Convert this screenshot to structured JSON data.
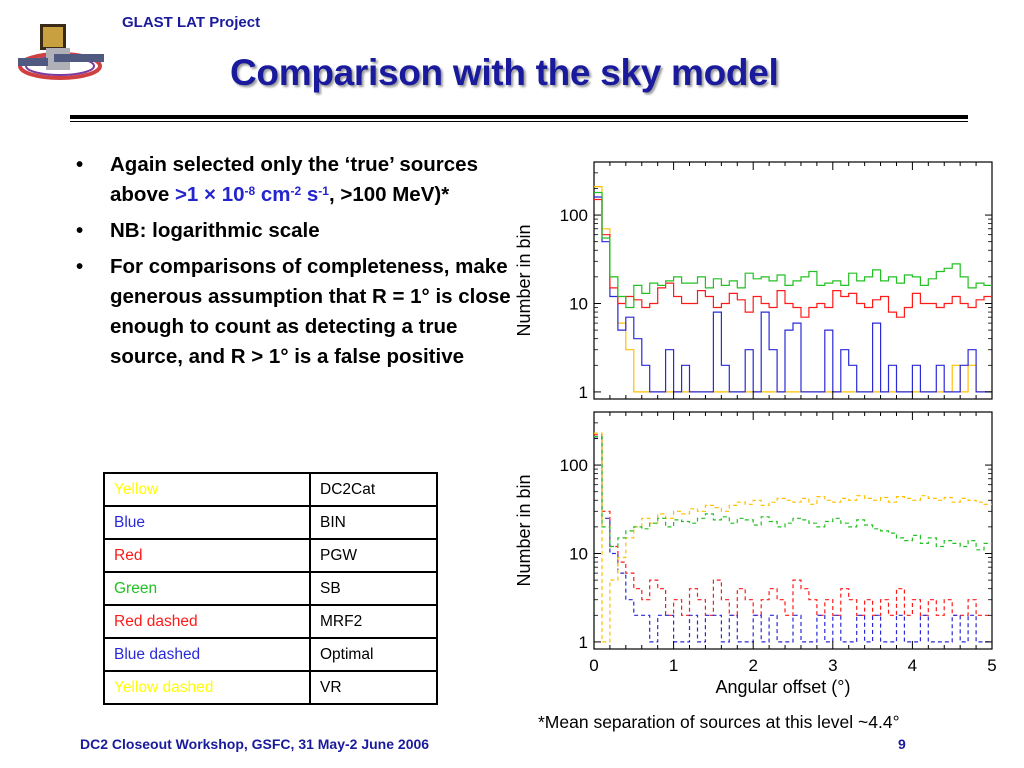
{
  "header": {
    "project": "GLAST LAT Project",
    "title": "Comparison with the sky model"
  },
  "bullets": {
    "b1": {
      "t1": "Again selected only the ‘true’ sources above ",
      "t2": ">1 × 10",
      "e1": "-8",
      "t3": " cm",
      "e2": "-2",
      "t4": " s",
      "e3": "-1",
      "t5": ", >100 MeV)*"
    },
    "b2": "NB:  logarithmic scale",
    "b3": "For comparisons of completeness, make generous assumption that R = 1° is close enough to count as detecting a true source, and R > 1° is a false positive"
  },
  "legend": {
    "rows": [
      {
        "label": "Yellow",
        "name": "DC2Cat",
        "color": "#ffff00"
      },
      {
        "label": "Blue",
        "name": "BIN",
        "color": "#2a2ad8"
      },
      {
        "label": "Red",
        "name": "PGW",
        "color": "#ff1a1a"
      },
      {
        "label": "Green",
        "name": "SB",
        "color": "#22c022"
      },
      {
        "label": "Red dashed",
        "name": "MRF2",
        "color": "#ff1a1a"
      },
      {
        "label": "Blue dashed",
        "name": "Optimal",
        "color": "#2a2ad8"
      },
      {
        "label": "Yellow dashed",
        "name": "VR",
        "color": "#ffff00"
      }
    ]
  },
  "chart_data": [
    {
      "type": "line",
      "panel": "top",
      "ylabel": "Number in bin",
      "yscale": "log",
      "yticks": [
        "1",
        "10",
        "100"
      ],
      "xlim": [
        0,
        5
      ],
      "bin_width": 0.1,
      "series": [
        {
          "name": "Yellow",
          "style": "solid",
          "color": "#ffc000",
          "values": [
            210,
            70,
            20,
            6,
            3,
            1,
            1,
            1,
            1,
            1,
            1,
            1,
            1,
            1,
            1,
            1,
            1,
            1,
            1,
            1,
            1,
            1,
            1,
            1,
            1,
            1,
            1,
            1,
            1,
            1,
            1,
            1,
            1,
            1,
            1,
            1,
            1,
            1,
            1,
            1,
            1,
            1,
            1,
            1,
            1,
            2,
            1,
            2,
            1,
            1
          ]
        },
        {
          "name": "Blue",
          "style": "solid",
          "color": "#2a2ad8",
          "values": [
            160,
            50,
            12,
            5,
            7,
            4,
            2,
            1,
            1,
            3,
            1,
            2,
            1,
            1,
            1,
            8,
            2,
            1,
            1,
            3,
            1,
            8,
            3,
            1,
            5,
            6,
            1,
            1,
            1,
            5,
            1,
            3,
            2,
            1,
            1,
            6,
            1,
            2,
            1,
            1,
            2,
            1,
            1,
            2,
            1,
            1,
            2,
            3,
            1,
            1
          ]
        },
        {
          "name": "Red",
          "style": "solid",
          "color": "#ff1a1a",
          "values": [
            150,
            60,
            15,
            10,
            12,
            11,
            9,
            10,
            15,
            17,
            12,
            10,
            10,
            14,
            12,
            9,
            10,
            13,
            11,
            8,
            12,
            10,
            9,
            14,
            10,
            9,
            7,
            9,
            10,
            9,
            14,
            12,
            13,
            10,
            9,
            11,
            12,
            8,
            7,
            9,
            13,
            10,
            10,
            9,
            10,
            12,
            10,
            9,
            11,
            12
          ]
        },
        {
          "name": "Green",
          "style": "solid",
          "color": "#22c022",
          "values": [
            180,
            55,
            20,
            12,
            9,
            16,
            13,
            17,
            16,
            18,
            20,
            17,
            17,
            20,
            15,
            19,
            16,
            18,
            15,
            22,
            19,
            20,
            18,
            21,
            16,
            18,
            20,
            23,
            16,
            17,
            18,
            16,
            22,
            18,
            20,
            24,
            18,
            20,
            17,
            21,
            20,
            16,
            19,
            23,
            25,
            28,
            20,
            15,
            17,
            16
          ]
        }
      ]
    },
    {
      "type": "line",
      "panel": "bottom",
      "ylabel": "Number in bin",
      "xlabel": "Angular offset (°)",
      "yscale": "log",
      "yticks": [
        "1",
        "10",
        "100"
      ],
      "xticks": [
        "0",
        "1",
        "2",
        "3",
        "4",
        "5"
      ],
      "xlim": [
        0,
        5
      ],
      "bin_width": 0.1,
      "series": [
        {
          "name": "Red dashed",
          "style": "dashed",
          "color": "#ff1a1a",
          "values": [
            220,
            30,
            12,
            8,
            6,
            4,
            3,
            5,
            4,
            2,
            3,
            2,
            4,
            3,
            2,
            5,
            3,
            2,
            4,
            3,
            2,
            3,
            4,
            3,
            2,
            5,
            4,
            3,
            2,
            3,
            2,
            4,
            3,
            2,
            3,
            2,
            3,
            2,
            4,
            2,
            3,
            2,
            3,
            2,
            3,
            2,
            2,
            3,
            2,
            2
          ]
        },
        {
          "name": "Blue dashed",
          "style": "dashed",
          "color": "#2a2ad8",
          "values": [
            200,
            25,
            10,
            6,
            3,
            2,
            2,
            1,
            2,
            2,
            1,
            1,
            2,
            1,
            2,
            2,
            1,
            2,
            1,
            1,
            2,
            1,
            2,
            1,
            1,
            2,
            1,
            1,
            2,
            1,
            2,
            1,
            1,
            2,
            1,
            2,
            1,
            1,
            2,
            1,
            1,
            2,
            1,
            1,
            1,
            2,
            1,
            2,
            1,
            1
          ]
        },
        {
          "name": "Yellow dashed",
          "style": "dashed",
          "color": "#ffc000",
          "values": [
            230,
            1,
            5,
            9,
            15,
            20,
            25,
            22,
            28,
            25,
            30,
            28,
            32,
            30,
            35,
            33,
            30,
            35,
            38,
            36,
            40,
            35,
            38,
            42,
            40,
            38,
            42,
            36,
            44,
            40,
            38,
            42,
            40,
            45,
            42,
            40,
            43,
            38,
            44,
            42,
            40,
            45,
            42,
            40,
            43,
            38,
            42,
            40,
            38,
            36
          ]
        },
        {
          "name": "Green dashed",
          "style": "dashed",
          "color": "#22c022",
          "values": [
            210,
            20,
            12,
            15,
            18,
            20,
            19,
            22,
            25,
            20,
            24,
            23,
            22,
            25,
            28,
            24,
            26,
            22,
            25,
            24,
            21,
            26,
            23,
            20,
            22,
            25,
            24,
            22,
            20,
            23,
            25,
            22,
            20,
            24,
            21,
            19,
            18,
            17,
            15,
            14,
            16,
            13,
            15,
            12,
            14,
            13,
            12,
            14,
            11,
            13
          ]
        }
      ]
    }
  ],
  "footer": {
    "left": "DC2 Closeout Workshop, GSFC, 31 May-2 June 2006",
    "page": "9",
    "note": "*Mean separation of sources at this level ~4.4°"
  }
}
